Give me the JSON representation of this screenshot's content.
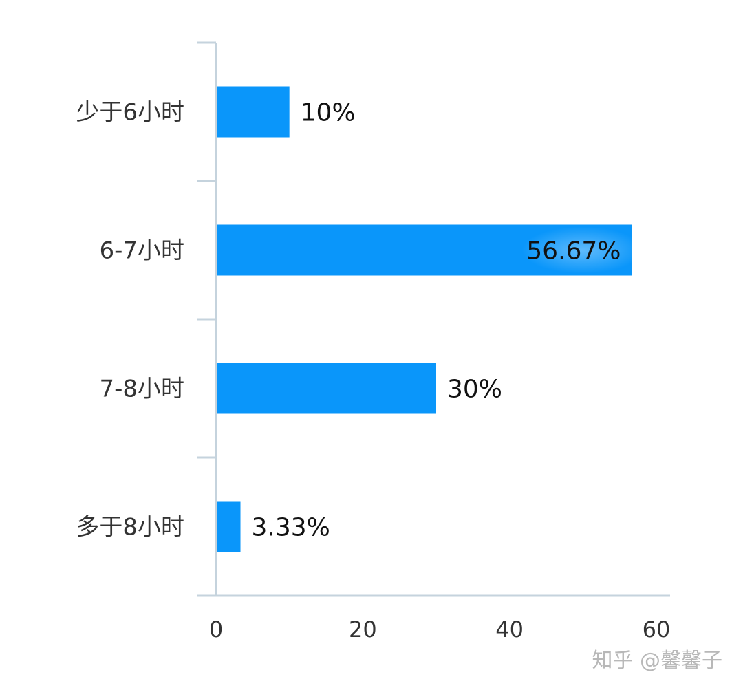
{
  "chart_data": {
    "type": "bar",
    "orientation": "horizontal",
    "categories": [
      "少于6小时",
      "6-7小时",
      "7-8小时",
      "多于8小时"
    ],
    "values": [
      10,
      56.67,
      30,
      3.33
    ],
    "value_labels": [
      "10%",
      "56.67%",
      "30%",
      "3.33%"
    ],
    "x_ticks": [
      0,
      20,
      40,
      60
    ],
    "xlim": [
      0,
      60
    ],
    "bar_color": "#0A96FA",
    "axis_color": "#C5D3DD",
    "grid": false,
    "legend": "none",
    "title": "",
    "xlabel": "",
    "ylabel": ""
  },
  "watermark": {
    "text": "知乎 @馨馨子"
  }
}
